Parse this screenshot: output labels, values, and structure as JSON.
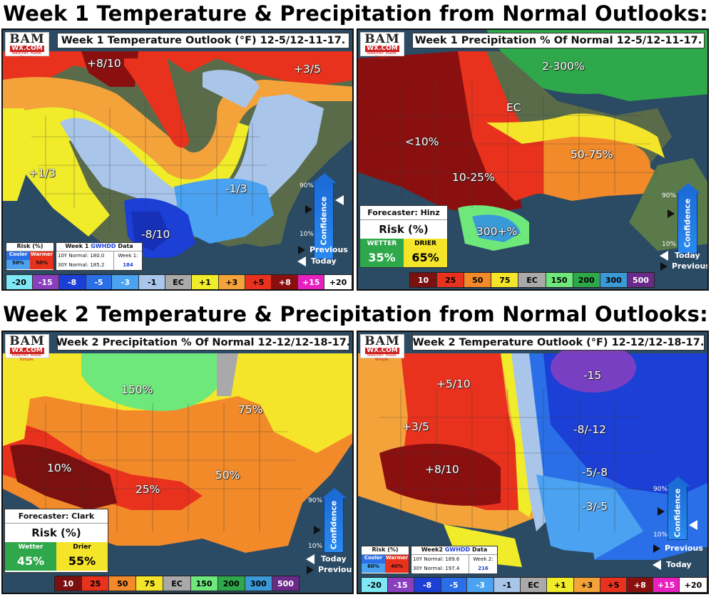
{
  "titles": {
    "week1": "Week 1 Temperature & Precipitation from Normal Outlooks:",
    "week2": "Week 2 Temperature & Precipitation from Normal Outlooks:"
  },
  "logo": {
    "line1": "BAM",
    "line2": "WX.COM",
    "line3": "Weather. Made. Simple."
  },
  "panels": {
    "w1temp": {
      "header": "Week 1 Temperature Outlook (°F) 12-5/12-11-17.",
      "labels": [
        "+8/10",
        "+3/5",
        "+1/3",
        "-1/3",
        "-8/10"
      ],
      "risk": {
        "title": "Risk (%)",
        "cooler": "Cooler",
        "warmer": "Warmer",
        "cooler_val": "50%",
        "warmer_val": "50%"
      },
      "gwhdd": {
        "title_pre": "Week 1",
        "title_link": "GWHDD",
        "title_post": "Data",
        "normal10": "10Y Normal: 180.0",
        "normal30": "30Y Normal: 185.2",
        "week_label": "Week 1:",
        "week_val": "184"
      },
      "conf": {
        "top": "90%",
        "bottom": "10%",
        "word": "Confidence",
        "prev": "Previous",
        "today": "Today"
      },
      "legend": [
        "-20",
        "-15",
        "-8",
        "-5",
        "-3",
        "-1",
        "EC",
        "+1",
        "+3",
        "+5",
        "+8",
        "+15",
        "+20"
      ]
    },
    "w1precip": {
      "header": "Week 1 Precipitation % Of Normal 12-5/12-11-17.",
      "labels": [
        "2-300%",
        "EC",
        "<10%",
        "50-75%",
        "10-25%",
        "300+%"
      ],
      "forecaster": "Forecaster: Hinz",
      "risk_title": "Risk (%)",
      "wetter": "WETTER",
      "drier": "DRIER",
      "wetter_val": "35%",
      "drier_val": "65%",
      "conf": {
        "top": "90%",
        "bottom": "10%",
        "word": "Confidence",
        "today": "Today",
        "prev": "Previous"
      },
      "legend": [
        "10",
        "25",
        "50",
        "75",
        "EC",
        "150",
        "200",
        "300",
        "500"
      ]
    },
    "w2precip": {
      "header": "Week 2 Precipitation % Of Normal 12-12/12-18-17.",
      "labels": [
        "150%",
        "75%",
        "10%",
        "25%",
        "50%"
      ],
      "forecaster": "Forecaster: Clark",
      "risk_title": "Risk (%)",
      "wetter": "Wetter",
      "drier": "Drier",
      "wetter_val": "45%",
      "drier_val": "55%",
      "conf": {
        "top": "90%",
        "bottom": "10%",
        "word": "Confidence",
        "today": "Today",
        "prev": "Previous"
      },
      "legend": [
        "10",
        "25",
        "50",
        "75",
        "EC",
        "150",
        "200",
        "300",
        "500"
      ]
    },
    "w2temp": {
      "header": "Week 2 Temperature Outlook (°F) 12-12/12-18-17.",
      "labels": [
        "+5/10",
        "-15",
        "+3/5",
        "-8/-12",
        "+8/10",
        "-5/-8",
        "-3/-5"
      ],
      "risk": {
        "title": "Risk (%)",
        "cooler": "Cooler",
        "warmer": "Warmer",
        "cooler_val": "60%",
        "warmer_val": "40%"
      },
      "gwhdd": {
        "title_pre": "Week2",
        "title_link": "GWHDD",
        "title_post": "Data",
        "normal10": "10Y Normal: 189.6",
        "normal30": "30Y Normal: 197.4",
        "week_label": "Week 2:",
        "week_val": "216"
      },
      "conf": {
        "top": "90%",
        "bottom": "10%",
        "word": "Confidence",
        "prev": "Previous",
        "today": "Today"
      },
      "legend": [
        "-20",
        "-15",
        "-8",
        "-5",
        "-3",
        "-1",
        "EC",
        "+1",
        "+3",
        "+5",
        "+8",
        "+15",
        "+20"
      ]
    }
  },
  "colors": {
    "temp_legend": [
      "#7fe8f5",
      "#8a3fbf",
      "#1c3fd6",
      "#2a6fe8",
      "#4aa2f0",
      "#a9c6ea",
      "#a9a9a9",
      "#f0ec2a",
      "#f4a23a",
      "#e8321e",
      "#8a1010",
      "#e820c0",
      "#ffffff"
    ],
    "precip_legend": [
      "#7a1010",
      "#e8321e",
      "#f28a2a",
      "#f5e52a",
      "#a9a9a9",
      "#6ee87a",
      "#2ea84a",
      "#3a9ad8",
      "#6a2a8a"
    ]
  }
}
